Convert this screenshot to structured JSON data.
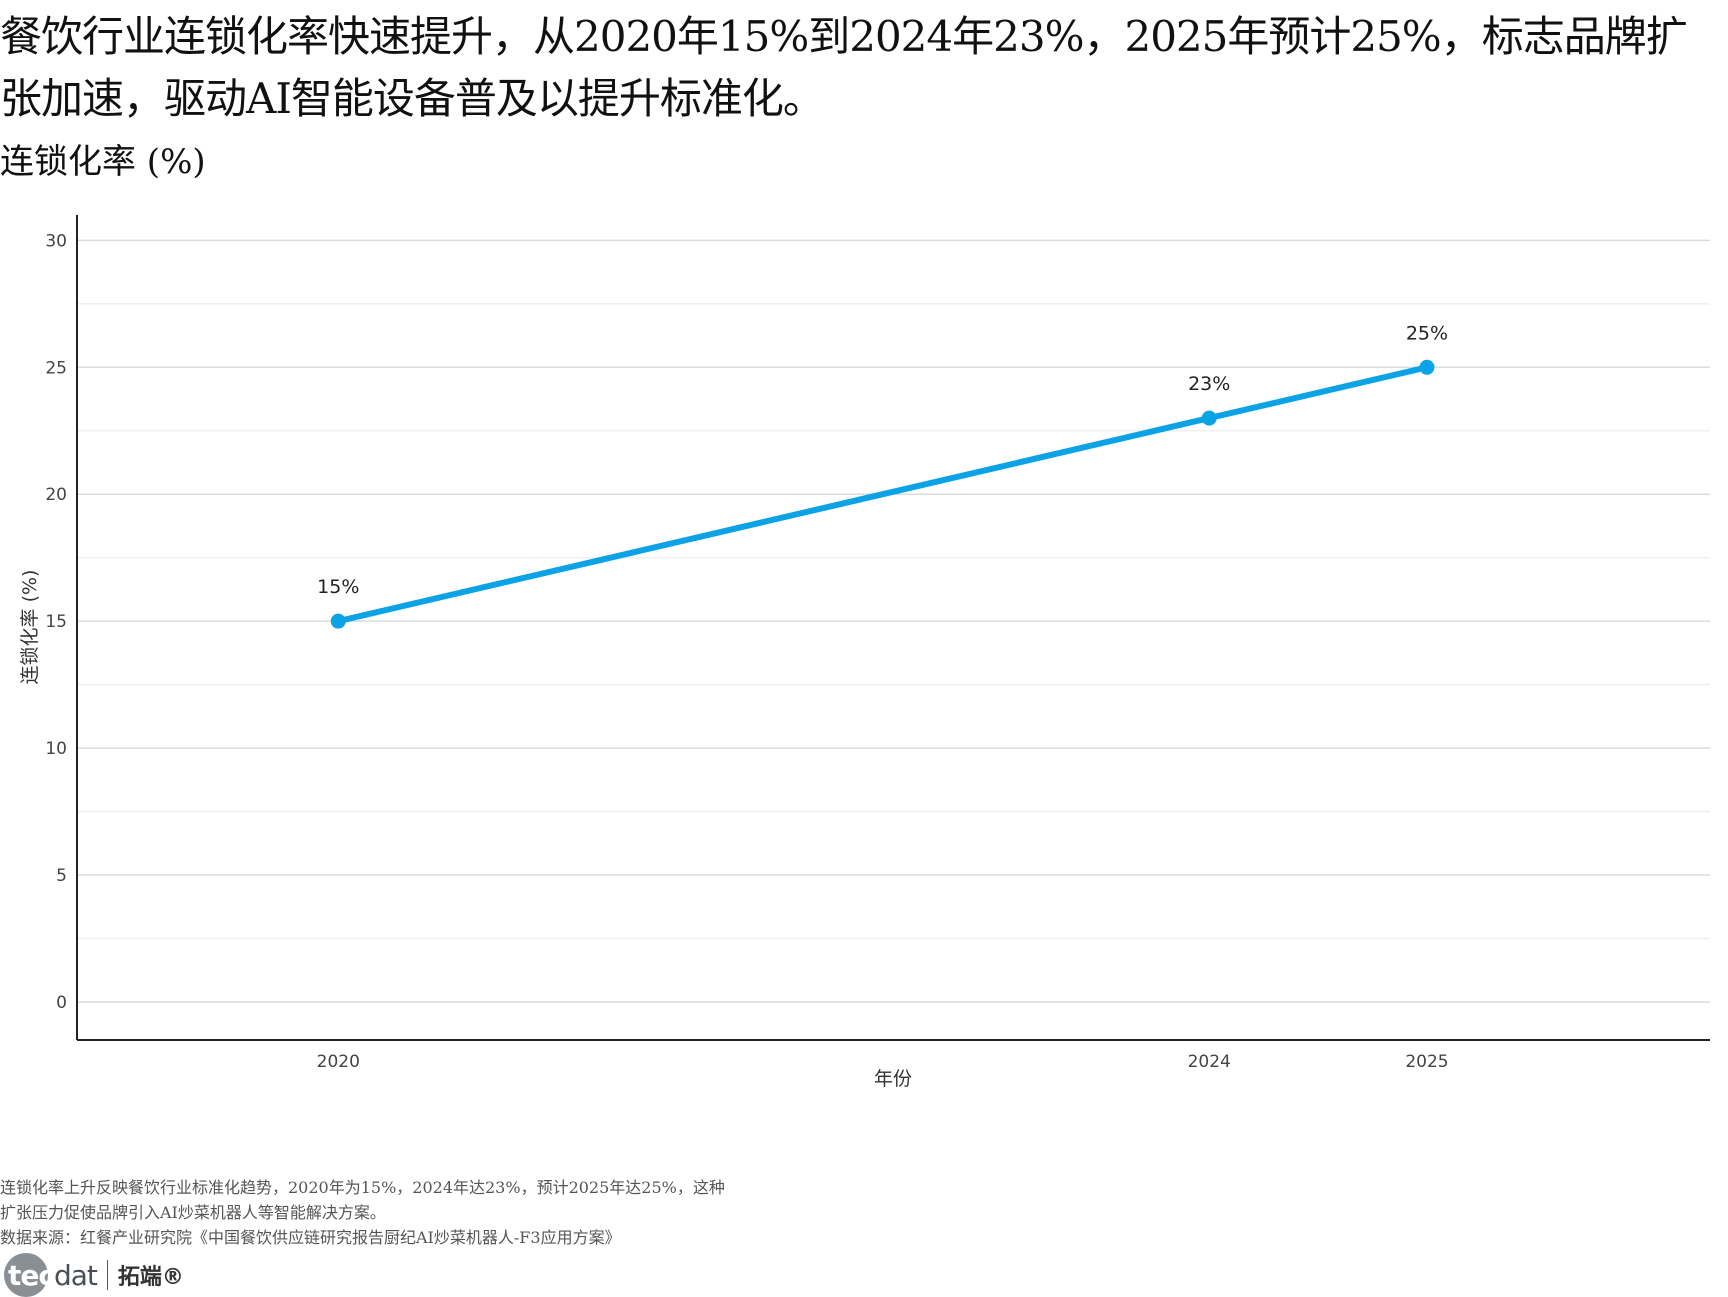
{
  "header": {
    "headline": "餐饮行业连锁化率快速提升，从2020年15%到2024年23%，2025年预计25%，标志品牌扩张加速，驱动AI智能设备普及以提升标准化。",
    "subtitle": "连锁化率 (%)"
  },
  "chart_data": {
    "type": "line",
    "x": [
      2020,
      2024,
      2025
    ],
    "x_tick_labels": [
      "2020",
      "2024",
      "2025"
    ],
    "series": [
      {
        "values": [
          15,
          23,
          25
        ],
        "point_labels": [
          "15%",
          "23%",
          "25%"
        ],
        "color": "#0ba3e6"
      }
    ],
    "xlabel": "年份",
    "ylabel": "连锁化率 (%)",
    "xlim": [
      2018.8,
      2026.3
    ],
    "ylim": [
      -1.5,
      31
    ],
    "y_ticks": [
      0,
      5,
      10,
      15,
      20,
      25,
      30
    ],
    "grid": true,
    "minor_grid": true
  },
  "notes": {
    "line1": "连锁化率上升反映餐饮行业标准化趋势，2020年为15%，2024年达23%，预计2025年达25%，这种",
    "line2": "扩张压力促使品牌引入AI炒菜机器人等智能解决方案。",
    "source": "数据来源：红餐产业研究院《中国餐饮供应链研究报告厨纪AI炒菜机器人-F3应用方案》"
  },
  "logo": {
    "tec": "tec",
    "dat": "dat",
    "cn": "拓端®"
  }
}
